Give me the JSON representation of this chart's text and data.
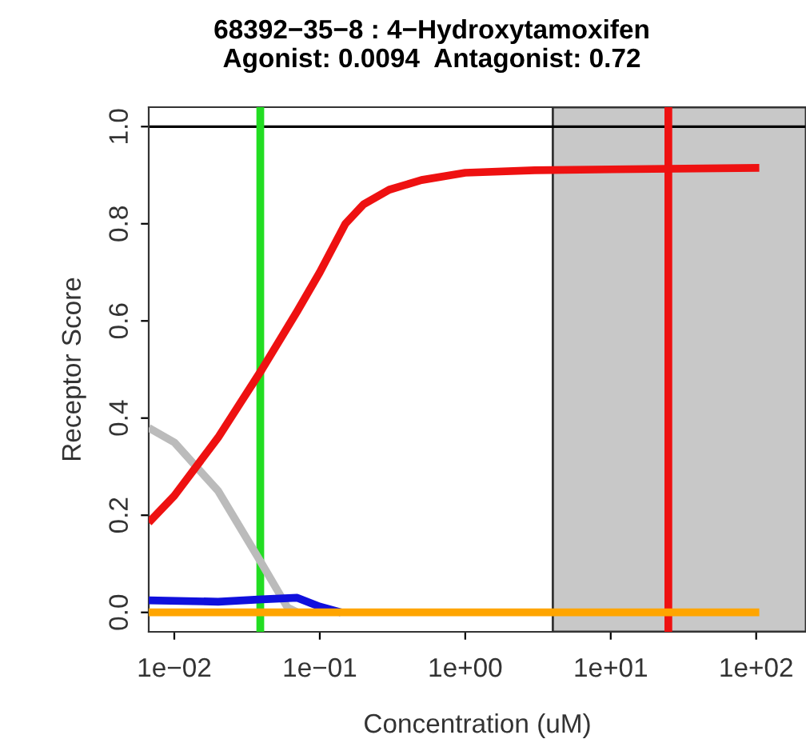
{
  "chart_data": {
    "type": "line",
    "title": "68392−35−8 : 4−Hydroxytamoxifen\nAgonist: 0.0094  Antagonist: 0.72",
    "xlabel": "Concentration (uM)",
    "ylabel": "Receptor Score",
    "log": "x",
    "xlim": [
      0.00667,
      220
    ],
    "ylim": [
      -0.04,
      1.04
    ],
    "xticks": [
      {
        "value": 0.01,
        "label": "1e−02"
      },
      {
        "value": 0.1,
        "label": "1e−01"
      },
      {
        "value": 1,
        "label": "1e+00"
      },
      {
        "value": 10,
        "label": "1e+01"
      },
      {
        "value": 100,
        "label": "1e+02"
      }
    ],
    "yticks": [
      {
        "value": 0,
        "label": "0.0"
      },
      {
        "value": 0.2,
        "label": "0.2"
      },
      {
        "value": 0.4,
        "label": "0.4"
      },
      {
        "value": 0.6,
        "label": "0.6"
      },
      {
        "value": 0.8,
        "label": "0.8"
      },
      {
        "value": 1,
        "label": "1.0"
      }
    ],
    "grid": false,
    "legend": false,
    "line_style": "solid",
    "marker": "none",
    "bands": [
      {
        "axis": "x",
        "from": 4.0,
        "to": 220,
        "color": "#c8c8c8"
      }
    ],
    "ref_lines": [
      {
        "axis": "y",
        "value": 1.0,
        "color": "#000000"
      },
      {
        "axis": "x",
        "value": 0.039,
        "color": "#22dd22"
      },
      {
        "axis": "x",
        "value": 24.9,
        "color": "#ee1111"
      }
    ],
    "series": [
      {
        "color": "#bbbbbb",
        "x": [
          0.00667,
          0.01,
          0.02,
          0.04,
          0.06,
          0.07
        ],
        "values": [
          0.38,
          0.35,
          0.25,
          0.1,
          0.01,
          0.0
        ]
      },
      {
        "color": "#1010dd",
        "x": [
          0.00667,
          0.02,
          0.04,
          0.07,
          0.1,
          0.14
        ],
        "values": [
          0.025,
          0.022,
          0.027,
          0.03,
          0.012,
          0.0
        ]
      },
      {
        "color": "#ee1111",
        "x": [
          0.00667,
          0.01,
          0.02,
          0.04,
          0.07,
          0.1,
          0.15,
          0.2,
          0.3,
          0.5,
          1,
          3,
          10,
          105
        ],
        "values": [
          0.185,
          0.24,
          0.36,
          0.5,
          0.62,
          0.7,
          0.8,
          0.84,
          0.87,
          0.89,
          0.905,
          0.91,
          0.912,
          0.915
        ]
      },
      {
        "color": "#ffa500",
        "x": [
          0.00667,
          105
        ],
        "values": [
          0.0,
          0.0
        ]
      }
    ]
  }
}
